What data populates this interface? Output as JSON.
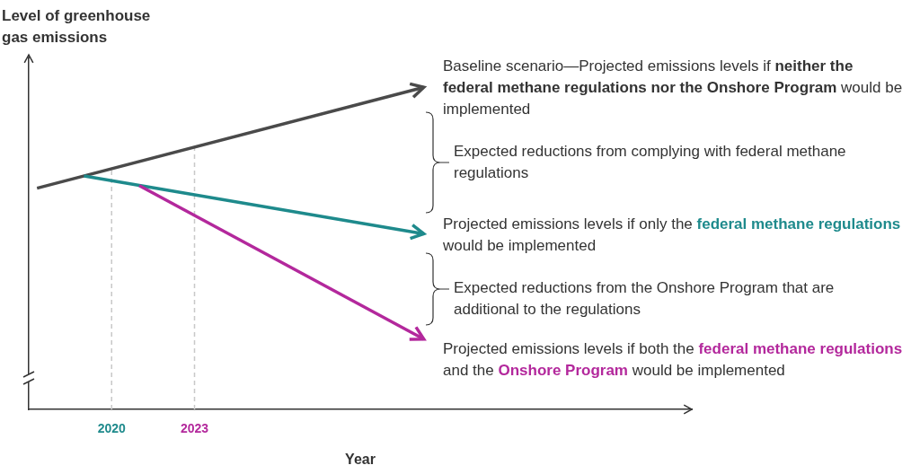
{
  "chart_data": {
    "type": "line",
    "y_label": "Level of greenhouse gas emissions",
    "x_label": "Year",
    "xlim": [
      2017,
      2041
    ],
    "xticks": [
      {
        "value": 2020,
        "label": "2020",
        "color": "#1e8a8c"
      },
      {
        "value": 2023,
        "label": "2023",
        "color": "#b3289c"
      }
    ],
    "ylim": [
      0,
      400
    ],
    "tick_labels": "x",
    "grid": false,
    "series": [
      {
        "color": "#4a4a4a",
        "x": [
          2017.3,
          2031.3
        ],
        "values": [
          252,
          367
        ]
      },
      {
        "color": "#1e8a8c",
        "x": [
          2019,
          2031.3
        ],
        "values": [
          266,
          200
        ]
      },
      {
        "color": "#b3289c",
        "x": [
          2021,
          2031.3
        ],
        "values": [
          255,
          80
        ]
      }
    ],
    "annotations": [
      {
        "runs": [
          {
            "text": "Baseline scenario—Projected emissions levels if "
          },
          {
            "text": "neither the federal methane regulations nor the Onshore Program",
            "color": "#333333"
          },
          {
            "text": " would be implemented"
          }
        ]
      },
      {
        "runs": [
          {
            "text": "Expected reductions from complying with federal methane regulations"
          }
        ]
      },
      {
        "runs": [
          {
            "text": "Projected emissions levels if only the "
          },
          {
            "text": "federal methane regulations",
            "color": "#1e8a8c"
          },
          {
            "text": " would be implemented"
          }
        ]
      },
      {
        "runs": [
          {
            "text": "Expected reductions from the Onshore Program that are additional to the regulations"
          }
        ]
      },
      {
        "runs": [
          {
            "text": "Projected emissions levels if both the "
          },
          {
            "text": "federal methane regulations",
            "color": "#b3289c"
          },
          {
            "text": " and the "
          },
          {
            "text": "Onshore Program",
            "color": "#b3289c"
          },
          {
            "text": " would be implemented"
          }
        ]
      }
    ]
  }
}
